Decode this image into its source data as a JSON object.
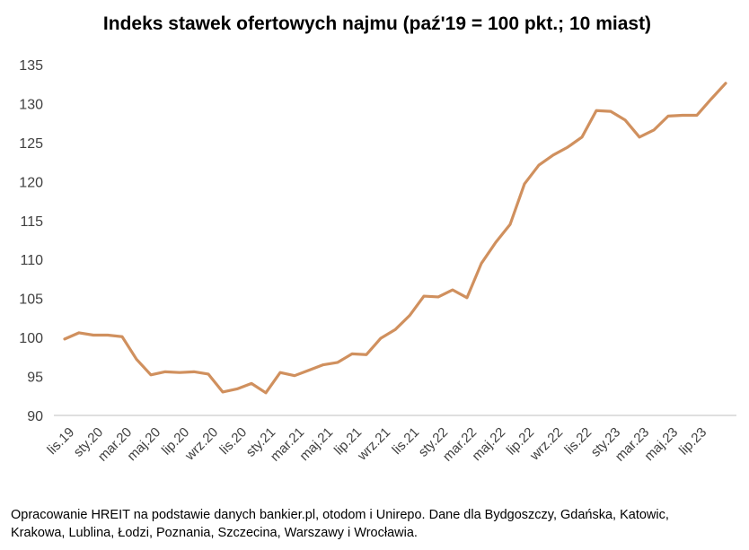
{
  "chart_data": {
    "type": "line",
    "title": "Indeks stawek ofertowych najmu (paź'19 = 100 pkt.; 10 miast)",
    "note": "Opracowanie HREIT na podstawie danych bankier.pl, otodom i Unirepo. Dane dla Bydgoszczy, Gdańska, Katowic, Krakowa, Lublina, Łodzi, Poznania, Szczecina, Warszawy i Wrocławia.",
    "categories": [
      "lis.19",
      null,
      "sty.20",
      null,
      "mar.20",
      null,
      "maj.20",
      null,
      "lip.20",
      null,
      "wrz.20",
      null,
      "lis.20",
      null,
      "sty.21",
      null,
      "mar.21",
      null,
      "maj.21",
      null,
      "lip.21",
      null,
      "wrz.21",
      null,
      "lis.21",
      null,
      "sty.22",
      null,
      "mar.22",
      null,
      "maj.22",
      null,
      "lip.22",
      null,
      "wrz.22",
      null,
      "lis.22",
      null,
      "sty.23",
      null,
      "mar.23",
      null,
      "maj.23",
      null,
      "lip.23",
      null,
      null
    ],
    "series": [
      {
        "color": "#d0905e",
        "values": [
          99.8,
          100.6,
          100.3,
          100.3,
          100.1,
          97.2,
          95.2,
          95.6,
          95.5,
          95.6,
          95.3,
          93.0,
          93.4,
          94.1,
          92.9,
          95.5,
          95.1,
          95.8,
          96.5,
          96.8,
          97.9,
          97.8,
          99.9,
          101.0,
          102.8,
          105.3,
          105.2,
          106.1,
          105.1,
          109.5,
          112.2,
          114.5,
          119.7,
          122.1,
          123.4,
          124.4,
          125.7,
          129.1,
          129.0,
          127.9,
          125.7,
          126.6,
          128.4,
          128.5,
          128.5,
          130.6,
          132.6
        ]
      }
    ],
    "ylim": [
      90,
      135
    ],
    "yticks": [
      90,
      95,
      100,
      105,
      110,
      115,
      120,
      125,
      130,
      135
    ],
    "grid": false
  }
}
